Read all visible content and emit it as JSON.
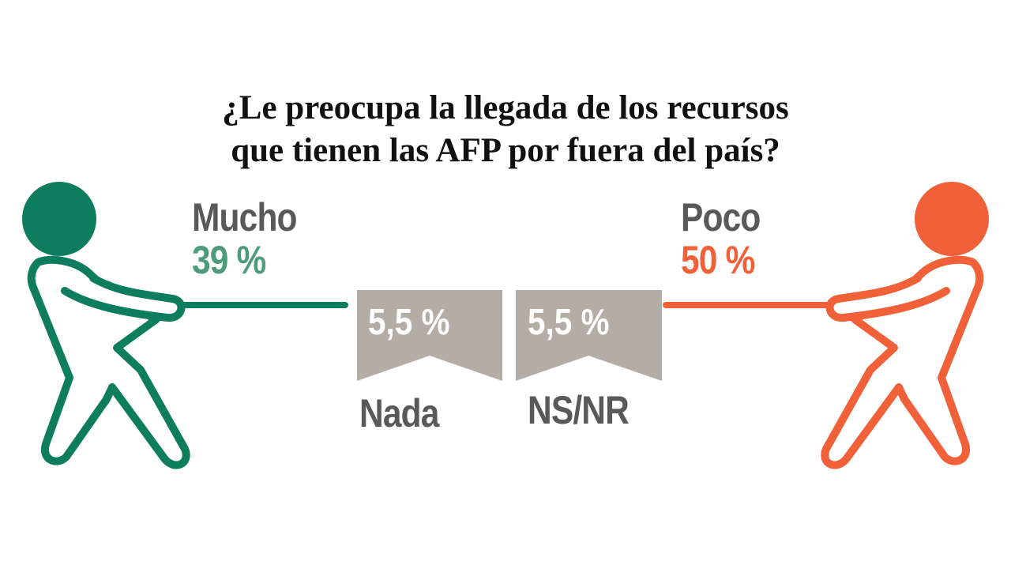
{
  "title": {
    "line1": "¿Le preocupa la llegada de los recursos",
    "line2": "que tienen las AFP por fuera del país?"
  },
  "colors": {
    "mucho": "#0e7d5e",
    "mucho_text": "#4e9a7c",
    "poco": "#f0613a",
    "flag": "#b3ada6",
    "label": "#58595b"
  },
  "chart_data": {
    "type": "infographic",
    "title": "¿Le preocupa la llegada de los recursos que tienen las AFP por fuera del país?",
    "categories": [
      "Mucho",
      "Poco",
      "Nada",
      "NS/NR"
    ],
    "values": [
      39,
      50,
      5.5,
      5.5
    ],
    "value_labels": [
      "39 %",
      "50 %",
      "5,5 %",
      "5,5 %"
    ],
    "unit": "%"
  }
}
